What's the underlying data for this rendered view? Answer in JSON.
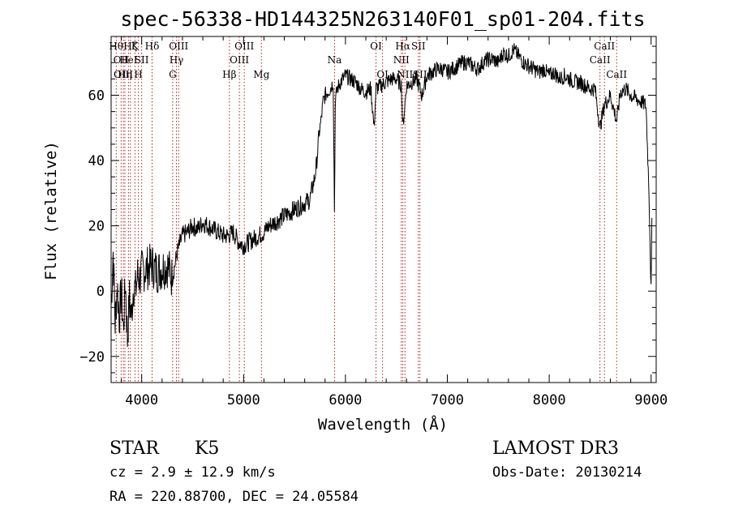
{
  "chart_data": {
    "type": "line",
    "title": "spec-56338-HD144325N263140F01_sp01-204.fits",
    "xlabel": "Wavelength (Å)",
    "ylabel": "Flux (relative)",
    "xlim": [
      3700,
      9050
    ],
    "ylim": [
      -28,
      78
    ],
    "x_ticks": [
      4000,
      5000,
      6000,
      7000,
      8000,
      9000
    ],
    "x_tick_labels": [
      "4000",
      "5000",
      "6000",
      "7000",
      "8000",
      "9000"
    ],
    "y_ticks": [
      -20,
      0,
      20,
      40,
      60
    ],
    "y_tick_labels": [
      "−20",
      "0",
      "20",
      "40",
      "60"
    ],
    "grid": false,
    "series": [
      {
        "values_x": [
          3700,
          3720,
          3740,
          3760,
          3780,
          3800,
          3820,
          3840,
          3860,
          3880,
          3900,
          3920,
          3940,
          3960,
          3980,
          4000,
          4050,
          4100,
          4150,
          4200,
          4250,
          4300,
          4350,
          4400,
          4450,
          4500,
          4550,
          4600,
          4650,
          4700,
          4750,
          4800,
          4850,
          4900,
          4950,
          5000,
          5050,
          5100,
          5150,
          5200,
          5250,
          5300,
          5350,
          5400,
          5450,
          5500,
          5550,
          5600,
          5650,
          5700,
          5720,
          5740,
          5760,
          5780,
          5800,
          5850,
          5880,
          5893,
          5900,
          5920,
          5950,
          6000,
          6050,
          6100,
          6150,
          6200,
          6250,
          6280,
          6300,
          6350,
          6400,
          6450,
          6500,
          6550,
          6563,
          6600,
          6650,
          6700,
          6750,
          6800,
          6850,
          6900,
          6950,
          7000,
          7050,
          7100,
          7150,
          7200,
          7250,
          7300,
          7350,
          7400,
          7450,
          7500,
          7550,
          7600,
          7650,
          7700,
          7750,
          7800,
          7850,
          7900,
          7950,
          8000,
          8050,
          8100,
          8150,
          8200,
          8250,
          8300,
          8350,
          8400,
          8450,
          8498,
          8542,
          8600,
          8662,
          8700,
          8750,
          8800,
          8850,
          8900,
          8950,
          8980,
          9000,
          9010
        ],
        "values_y": [
          -5,
          12,
          -10,
          2,
          -8,
          0,
          -12,
          3,
          -15,
          -2,
          -8,
          2,
          0,
          5,
          4,
          6,
          7,
          8,
          6,
          7,
          8,
          4,
          12,
          17,
          18,
          20,
          19,
          21,
          20,
          19,
          18,
          17,
          17,
          18,
          15,
          14,
          15,
          16,
          17,
          18,
          20,
          21,
          22,
          23,
          24,
          25,
          26,
          27,
          28,
          35,
          40,
          48,
          52,
          58,
          60,
          62,
          64,
          22,
          58,
          62,
          64,
          66,
          65,
          64,
          62,
          61,
          62,
          50,
          62,
          63,
          64,
          65,
          65,
          63,
          50,
          63,
          64,
          65,
          60,
          66,
          67,
          68,
          68,
          67,
          68,
          69,
          70,
          70,
          69,
          68,
          70,
          71,
          71,
          70,
          73,
          72,
          74,
          72,
          70,
          69,
          68,
          67,
          68,
          66,
          67,
          65,
          66,
          65,
          64,
          64,
          63,
          62,
          62,
          50,
          57,
          60,
          52,
          61,
          62,
          60,
          59,
          58,
          57,
          30,
          0,
          25
        ]
      }
    ],
    "line_ids": [
      {
        "x": 3750,
        "label": "Hθ",
        "row": 0
      },
      {
        "x": 3798,
        "label": "OII",
        "row": 1
      },
      {
        "x": 3820,
        "label": "OIII",
        "row": 2
      },
      {
        "x": 3835,
        "label": "Hη",
        "row": 2
      },
      {
        "x": 3870,
        "label": "HeI",
        "row": 1
      },
      {
        "x": 3889,
        "label": "Hζ",
        "row": 0
      },
      {
        "x": 3934,
        "label": "K",
        "row": 0
      },
      {
        "x": 3968,
        "label": "H",
        "row": 2
      },
      {
        "x": 4000,
        "label": "SII",
        "row": 1
      },
      {
        "x": 4102,
        "label": "Hδ",
        "row": 0
      },
      {
        "x": 4304,
        "label": "G",
        "row": 2
      },
      {
        "x": 4341,
        "label": "Hγ",
        "row": 1
      },
      {
        "x": 4363,
        "label": "OIII",
        "row": 0
      },
      {
        "x": 4861,
        "label": "Hβ",
        "row": 2
      },
      {
        "x": 4959,
        "label": "OIII",
        "row": 1
      },
      {
        "x": 5007,
        "label": "OIII",
        "row": 0
      },
      {
        "x": 5175,
        "label": "Mg",
        "row": 2
      },
      {
        "x": 5893,
        "label": "Na",
        "row": 1
      },
      {
        "x": 6300,
        "label": "OI",
        "row": 0
      },
      {
        "x": 6364,
        "label": "OI",
        "row": 2
      },
      {
        "x": 6548,
        "label": "NII",
        "row": 1
      },
      {
        "x": 6563,
        "label": "Hα",
        "row": 0
      },
      {
        "x": 6584,
        "label": "NII",
        "row": 2
      },
      {
        "x": 6716,
        "label": "SII",
        "row": 0
      },
      {
        "x": 6731,
        "label": "SII",
        "row": 2
      },
      {
        "x": 8498,
        "label": "CaII",
        "row": 1
      },
      {
        "x": 8542,
        "label": "CaII",
        "row": 0
      },
      {
        "x": 8662,
        "label": "CaII",
        "row": 2
      }
    ],
    "annotations": {
      "object_class": "STAR",
      "subclass": "K5",
      "survey": "LAMOST DR3",
      "cz": "cz = 2.9 ± 12.9 km/s",
      "obs_date": "Obs-Date: 20130214",
      "coords": "RA = 220.88700, DEC =  24.05584"
    }
  }
}
